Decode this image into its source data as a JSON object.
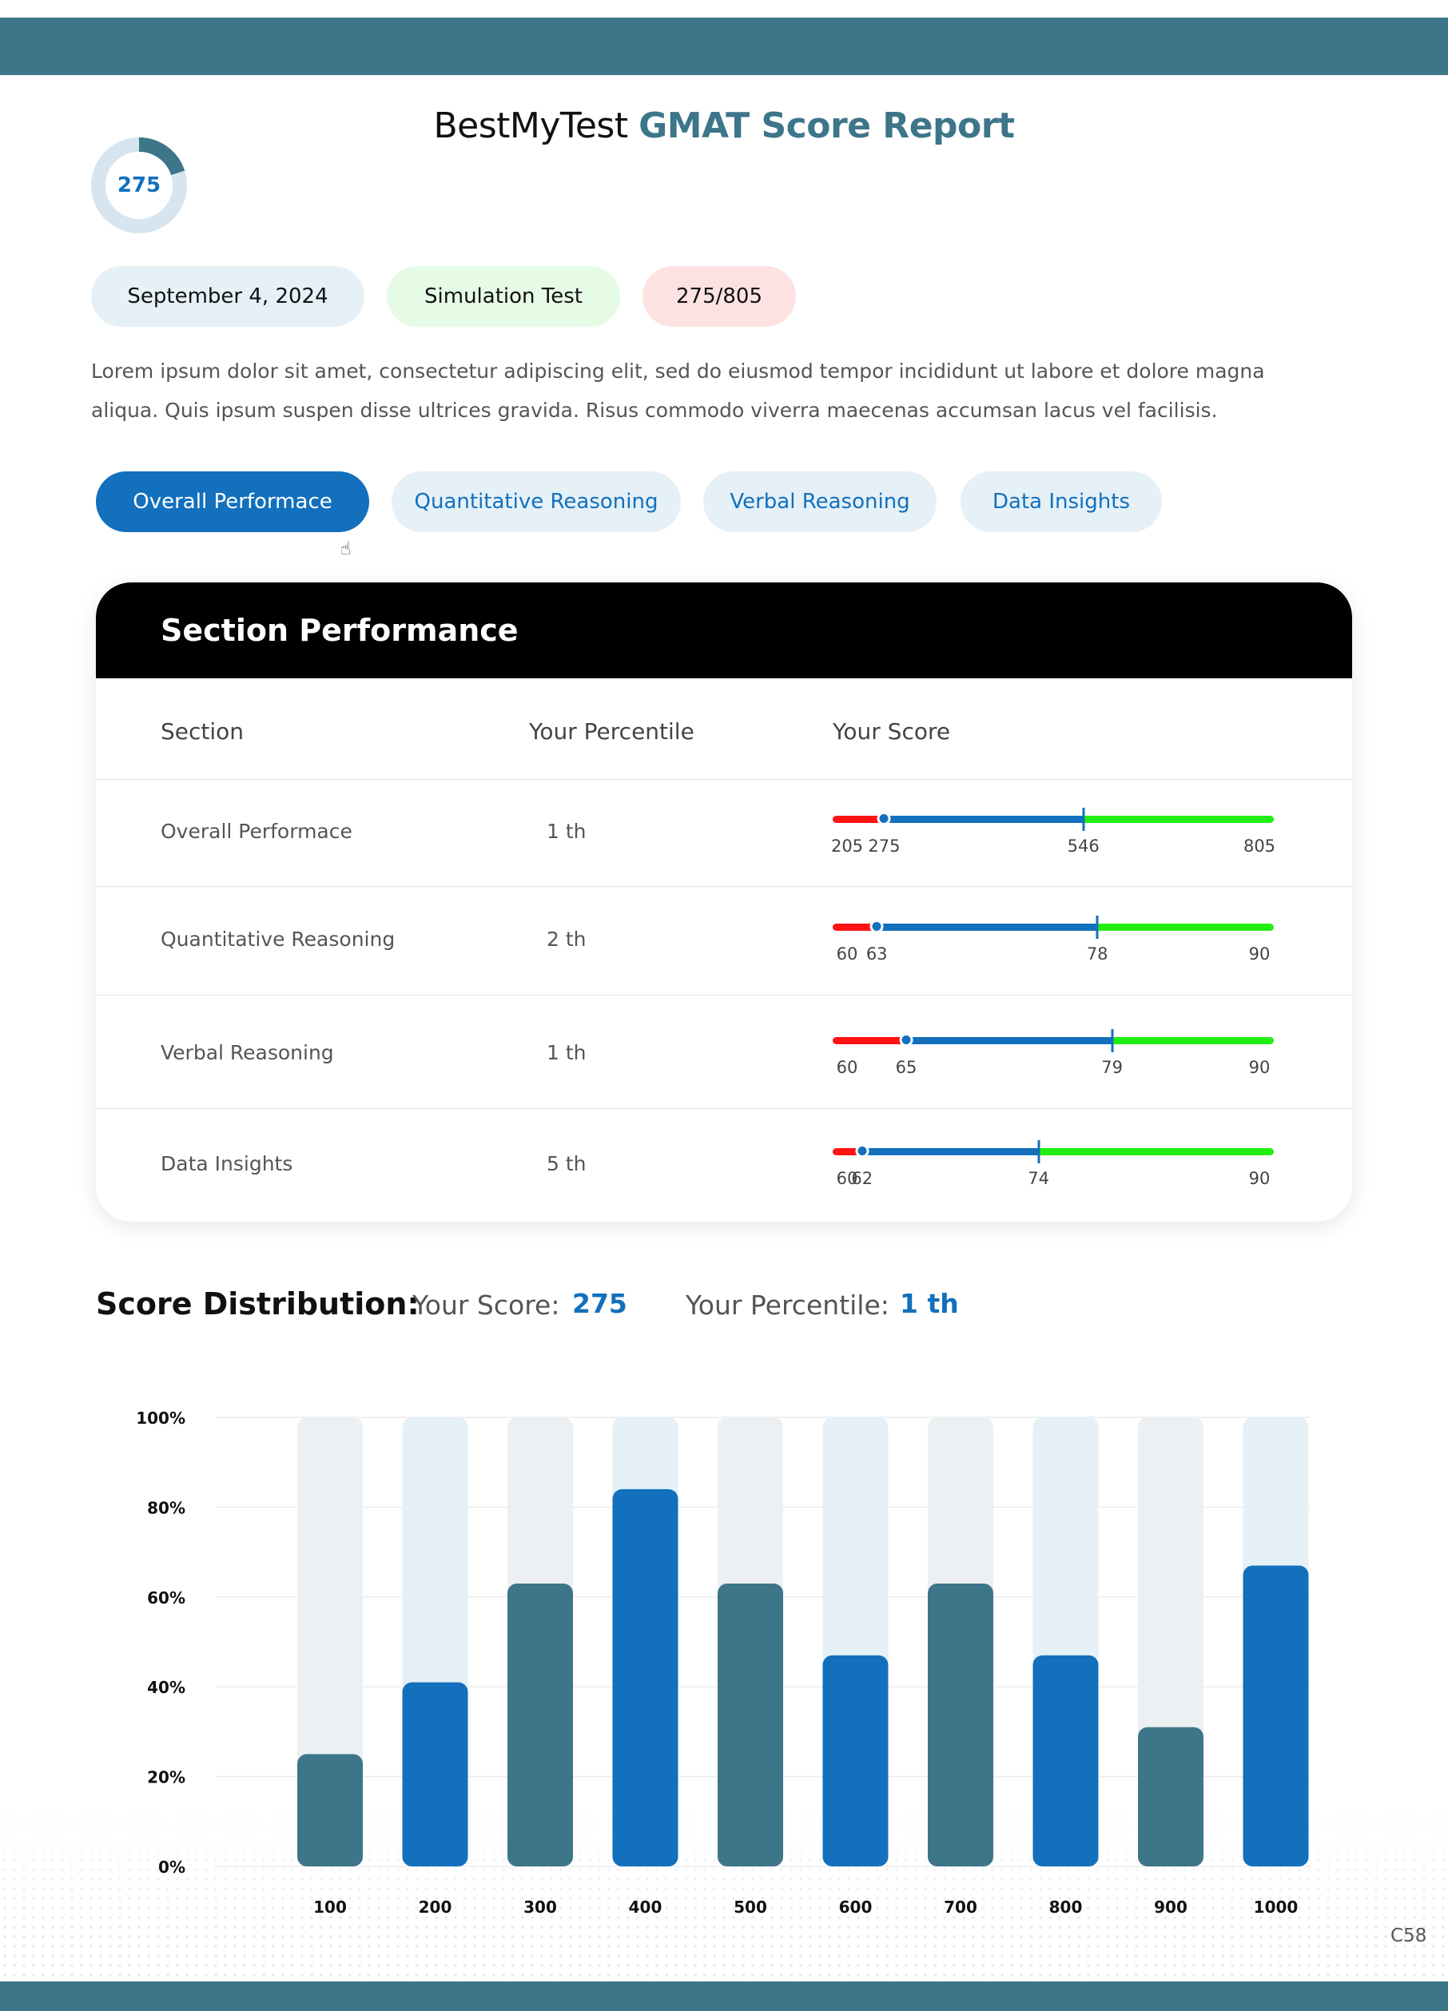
{
  "header": {
    "title_prefix": "BestMyTest",
    "title_accent": "GMAT Score Report",
    "gauge_value": "275",
    "gauge_fraction": 0.2
  },
  "pills": {
    "date": "September 4, 2024",
    "test_type": "Simulation Test",
    "score": "275/805"
  },
  "intro": "Lorem ipsum dolor sit amet, consectetur adipiscing elit, sed do eiusmod tempor incididunt ut labore et dolore magna aliqua. Quis ipsum suspen disse ultrices gravida. Risus commodo viverra maecenas accumsan lacus vel facilisis.",
  "tabs": [
    {
      "label": "Overall Performace",
      "active": true
    },
    {
      "label": "Quantitative Reasoning",
      "active": false
    },
    {
      "label": "Verbal Reasoning",
      "active": false
    },
    {
      "label": "Data Insights",
      "active": false
    }
  ],
  "section_performance": {
    "title": "Section Performance",
    "columns": {
      "section": "Section",
      "percentile": "Your Percentile",
      "score": "Your Score"
    },
    "rows": [
      {
        "section": "Overall Performace",
        "percentile": "1 th",
        "min": 205,
        "score": 275,
        "target": 546,
        "max": 805,
        "labels": {
          "min": "205",
          "score": "275",
          "target": "546",
          "max": "805"
        }
      },
      {
        "section": "Quantitative Reasoning",
        "percentile": "2 th",
        "min": 60,
        "score": 63,
        "target": 78,
        "max": 90,
        "labels": {
          "min": "60",
          "score": "63",
          "target": "78",
          "max": "90"
        }
      },
      {
        "section": "Verbal Reasoning",
        "percentile": "1 th",
        "min": 60,
        "score": 65,
        "target": 79,
        "max": 90,
        "labels": {
          "min": "60",
          "score": "65",
          "target": "79",
          "max": "90"
        }
      },
      {
        "section": "Data Insights",
        "percentile": "5 th",
        "min": 60,
        "score": 62,
        "target": 74,
        "max": 90,
        "labels": {
          "min": "60",
          "score": "62",
          "target": "74",
          "max": "90"
        }
      }
    ]
  },
  "distribution": {
    "title": "Score Distribution:",
    "score_label": "Your Score:",
    "score_value": "275",
    "percentile_label": "Your Percentile:",
    "percentile_value": "1 th"
  },
  "chart_data": {
    "type": "bar",
    "categories": [
      "100",
      "200",
      "300",
      "400",
      "500",
      "600",
      "700",
      "800",
      "900",
      "1000"
    ],
    "values": [
      25,
      41,
      63,
      84,
      63,
      47,
      63,
      47,
      31,
      67
    ],
    "ylim": [
      0,
      100
    ],
    "y_ticks": [
      "0%",
      "20%",
      "40%",
      "60%",
      "80%",
      "100%"
    ],
    "grid": true,
    "colors": {
      "teal": "#3d7589",
      "blue": "#1270bd",
      "track_gray": "#ecf0f3",
      "track_blue": "#e5f0f7"
    }
  },
  "colors": {
    "brand": "#3d7589",
    "accent_blue": "#1270bd",
    "range_low": "#ff1212",
    "range_mid": "#1270bd",
    "range_high": "#22ee11"
  },
  "footer": {
    "page_code": "C58"
  }
}
